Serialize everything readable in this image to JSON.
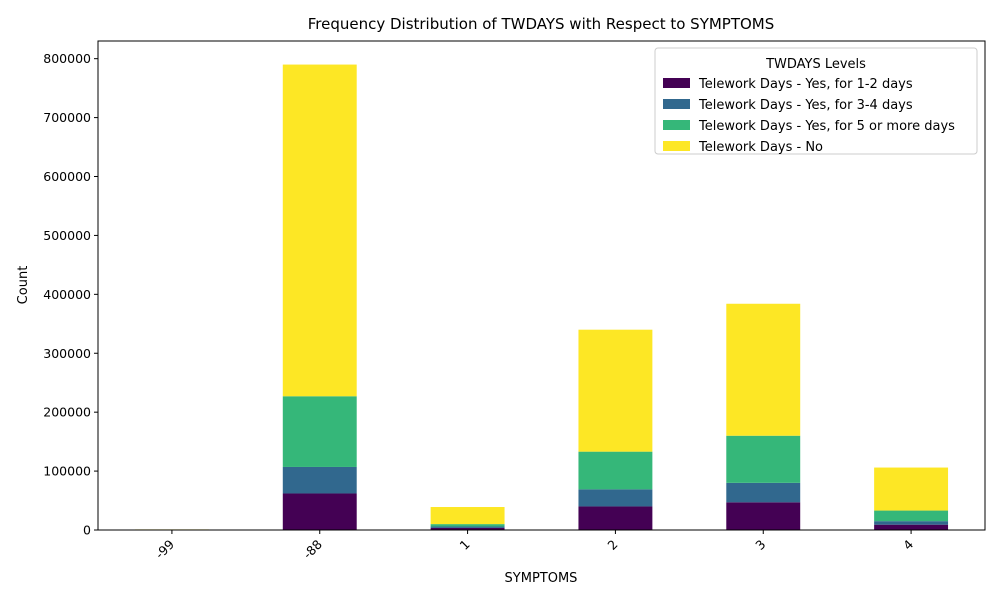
{
  "chart_data": {
    "type": "bar",
    "stacked": true,
    "title": "Frequency Distribution of TWDAYS with Respect to SYMPTOMS",
    "xlabel": "SYMPTOMS",
    "ylabel": "Count",
    "categories": [
      "-99",
      "-88",
      "1",
      "2",
      "3",
      "4"
    ],
    "yticks": [
      0,
      100000,
      200000,
      300000,
      400000,
      500000,
      600000,
      700000,
      800000
    ],
    "tick_labels": [
      "0",
      "100000",
      "200000",
      "300000",
      "400000",
      "500000",
      "600000",
      "700000",
      "800000"
    ],
    "ylim": [
      0,
      830000
    ],
    "x_tick_rotation": 45,
    "legend_title": "TWDAYS Levels",
    "legend_position": "top-right",
    "grid": false,
    "series": [
      {
        "name": "Telework Days - Yes, for 1-2 days",
        "color": "#440154",
        "values": [
          200,
          62000,
          3500,
          40000,
          47000,
          9000
        ]
      },
      {
        "name": "Telework Days - Yes, for 3-4 days",
        "color": "#31688e",
        "values": [
          100,
          45000,
          2500,
          29000,
          33000,
          6000
        ]
      },
      {
        "name": "Telework Days - Yes, for 5 or more days",
        "color": "#35b779",
        "values": [
          150,
          120000,
          4000,
          64000,
          80000,
          18000
        ]
      },
      {
        "name": "Telework Days - No",
        "color": "#fde725",
        "values": [
          550,
          563000,
          29000,
          207000,
          224000,
          73000
        ]
      }
    ]
  }
}
